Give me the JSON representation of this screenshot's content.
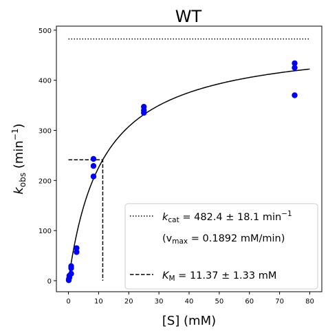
{
  "chart_data": {
    "type": "scatter",
    "title": "WT",
    "xlabel": "[S] (mM)",
    "ylabel": "k_obs (min^-1)",
    "xlim": [
      -4,
      84
    ],
    "ylim": [
      -22,
      508
    ],
    "xticks": [
      0,
      10,
      20,
      30,
      40,
      50,
      60,
      70,
      80
    ],
    "yticks": [
      0,
      100,
      200,
      300,
      400,
      500
    ],
    "grid": false,
    "legend_position": "lower-right",
    "marker_color": "#0000ff",
    "points": {
      "x": [
        0.1,
        0.1,
        0.3,
        0.3,
        0.9,
        0.9,
        0.9,
        2.7,
        2.7,
        8.3,
        8.3,
        8.3,
        25,
        25,
        25,
        75,
        75,
        75
      ],
      "y": [
        1,
        3,
        6,
        10,
        14,
        25,
        29,
        57,
        65,
        208,
        229,
        243,
        335,
        340,
        347,
        370,
        425,
        434
      ]
    },
    "fit": {
      "model": "michaelis-menten",
      "kcat": 482.4,
      "km": 11.37,
      "x_range": [
        0,
        80
      ],
      "style": "solid"
    },
    "vmax_line": {
      "y": 482.4,
      "x_range": [
        0,
        80
      ],
      "style": "dotted"
    },
    "km_guide": {
      "x": 11.37,
      "y": 241.2,
      "style": "dashed"
    },
    "legend": {
      "entries": [
        {
          "line_style": "dotted",
          "label_symbol": "k",
          "label_subscript": "cat",
          "label_rest": " = 482.4 ± 18.1 min",
          "label_sup": "−1"
        },
        {
          "line_style": "none",
          "label_pre": "(v",
          "label_subscript": "max",
          "label_rest": " = 0.1892 mM/min)"
        },
        {
          "line_style": "dashed",
          "label_symbol": "K",
          "label_subscript": "M",
          "label_rest": " = 11.37 ± 1.33 mM"
        }
      ]
    },
    "axis_text": {
      "x_main": "[S] (mM)",
      "y_symbol": "k",
      "y_subscript": "obs",
      "y_rest": " (min",
      "y_sup": "−1",
      "y_close": ")"
    }
  }
}
